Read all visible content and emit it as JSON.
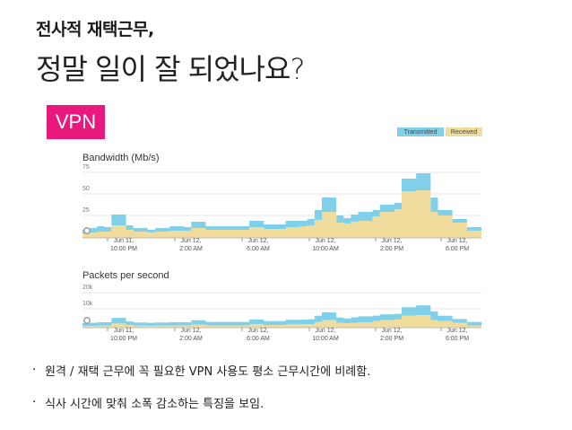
{
  "slide": {
    "subtitle": "전사적 재택근무,",
    "title": "정말 일이 잘 되었나요?",
    "badge": "VPN",
    "bullets": [
      "원격 / 재택 근무에 꼭 필요한 VPN 사용도 평소 근무시간에 비례함.",
      "식사 시간에 맞춰 소폭 감소하는 특징을 보임."
    ]
  },
  "legend": {
    "transmitted": "Transmitted",
    "received": "Received"
  },
  "colors": {
    "transmitted": "#7fd0e8",
    "received": "#f0dc9c",
    "accent": "#e8187c",
    "grid": "#e6e6e6"
  },
  "chart_data": [
    {
      "type": "area",
      "title": "Bandwidth (Mb/s)",
      "y_ticks": [
        "75",
        "50",
        "25"
      ],
      "ylim": [
        0,
        85
      ],
      "x_ticks": [
        "Jun 11,\n10:00 PM",
        "Jun 12,\n2:00 AM",
        "Jun 12,\n6:00 AM",
        "Jun 12,\n10:00 AM",
        "Jun 12,\n2:00 PM",
        "Jun 12,\n6:00 PM"
      ],
      "stacked": true,
      "series": [
        {
          "name": "Received",
          "values": [
            5,
            6,
            7,
            7,
            14,
            14,
            9,
            7,
            7,
            6,
            7,
            7,
            8,
            8,
            8,
            11,
            11,
            9,
            9,
            9,
            9,
            9,
            9,
            12,
            12,
            10,
            10,
            10,
            12,
            12,
            13,
            14,
            20,
            29,
            29,
            17,
            16,
            18,
            19,
            19,
            24,
            29,
            29,
            32,
            52,
            52,
            53,
            53,
            29,
            25,
            25,
            17,
            17,
            8,
            8
          ]
        },
        {
          "name": "Transmitted",
          "values": [
            4,
            5,
            6,
            5,
            12,
            12,
            5,
            4,
            4,
            3,
            4,
            4,
            5,
            5,
            4,
            7,
            7,
            4,
            4,
            4,
            4,
            4,
            4,
            7,
            7,
            5,
            5,
            5,
            7,
            7,
            6,
            7,
            11,
            16,
            16,
            8,
            6,
            8,
            10,
            10,
            7,
            8,
            8,
            7,
            14,
            14,
            19,
            19,
            16,
            6,
            6,
            4,
            4,
            4,
            4
          ]
        }
      ]
    },
    {
      "type": "area",
      "title": "Packets per second",
      "y_ticks": [
        "20k",
        "10k"
      ],
      "ylim": [
        0,
        23000
      ],
      "x_ticks": [
        "Jun 11,\n10:00 PM",
        "Jun 12,\n2:00 AM",
        "Jun 12,\n6:00 AM",
        "Jun 12,\n10:00 AM",
        "Jun 12,\n2:00 PM",
        "Jun 12,\n6:00 PM"
      ],
      "stacked": true,
      "series": [
        {
          "name": "Received",
          "values": [
            800,
            900,
            1000,
            1000,
            2200,
            2200,
            1300,
            1000,
            1000,
            900,
            1000,
            1000,
            1100,
            1100,
            1100,
            1600,
            1600,
            1200,
            1200,
            1200,
            1200,
            1200,
            1200,
            1800,
            1800,
            1400,
            1400,
            1400,
            1700,
            1700,
            1800,
            1900,
            2900,
            3900,
            3900,
            2500,
            2300,
            2600,
            2800,
            2800,
            3400,
            4000,
            4000,
            4300,
            6300,
            6300,
            6500,
            6500,
            4000,
            3500,
            3500,
            2500,
            2500,
            1200,
            1200
          ]
        },
        {
          "name": "Transmitted",
          "values": [
            1600,
            1700,
            1800,
            1800,
            2900,
            2900,
            2000,
            1700,
            1700,
            1600,
            1700,
            1700,
            1800,
            1800,
            1700,
            2300,
            2300,
            1800,
            1800,
            1800,
            1800,
            1800,
            1800,
            2500,
            2500,
            2000,
            2000,
            2000,
            2400,
            2400,
            2400,
            2500,
            3300,
            4100,
            4100,
            2800,
            2500,
            2800,
            3100,
            3100,
            2900,
            3000,
            3000,
            2900,
            4400,
            4400,
            5200,
            5200,
            4500,
            2700,
            2700,
            2000,
            2000,
            1800,
            1800
          ]
        }
      ]
    }
  ]
}
